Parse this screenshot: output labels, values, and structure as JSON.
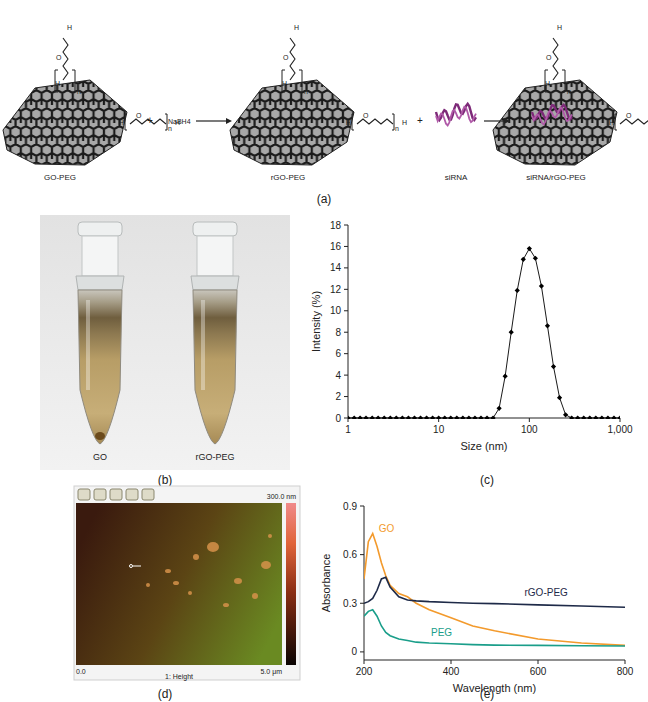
{
  "panel_labels": [
    "(a)",
    "(b)",
    "(c)",
    "(d)",
    "(e)"
  ],
  "schematic": {
    "labels": [
      "GO-PEG",
      "rGO-PEG",
      "siRNA",
      "siRNA/rGO-PEG"
    ],
    "reagent": "NaBH4",
    "plus": "+",
    "atoms": {
      "h": "H",
      "o": "O",
      "n": "n"
    }
  },
  "photo": {
    "labels": [
      "GO",
      "rGO-PEG"
    ]
  },
  "afm": {
    "scale_label": "300.0 nm",
    "x_start": "0.0",
    "x_end": "5.0 μm",
    "channel": "1: Height"
  },
  "chart_data": [
    {
      "type": "line",
      "x_label": "Size (nm)",
      "y_label": "Intensity (%)",
      "log": "x",
      "marker": "diamond",
      "color": "#000000",
      "grid": false,
      "x": [
        1,
        1.17,
        1.36,
        1.58,
        1.85,
        2.15,
        2.51,
        2.93,
        3.41,
        3.98,
        4.64,
        5.41,
        6.31,
        7.36,
        8.58,
        10,
        11.66,
        13.59,
        15.85,
        18.48,
        21.54,
        25.12,
        29.29,
        34.15,
        39.81,
        46.42,
        54.12,
        63.1,
        73.56,
        85.77,
        100,
        116.59,
        135.94,
        158.49,
        184.78,
        215.44,
        251.19,
        292.87,
        341.46,
        398.11,
        464.16,
        541.17,
        630.96,
        735.64,
        857.7,
        1000
      ],
      "values": [
        0,
        0,
        0,
        0,
        0,
        0,
        0,
        0,
        0,
        0,
        0,
        0,
        0,
        0,
        0,
        0,
        0,
        0,
        0,
        0,
        0,
        0,
        0,
        0,
        0,
        0.9,
        3.9,
        8.0,
        11.9,
        14.8,
        15.8,
        14.9,
        12.3,
        8.6,
        4.8,
        1.9,
        0.3,
        0,
        0,
        0,
        0,
        0,
        0,
        0,
        0,
        0
      ],
      "xlim": [
        1,
        1000
      ],
      "xticks": [
        1,
        10,
        100,
        {
          "value": 1000,
          "label": "1,000"
        }
      ],
      "ylim": [
        0,
        18
      ],
      "yticks": [
        0,
        2,
        4,
        6,
        8,
        10,
        12,
        14,
        16,
        18
      ]
    },
    {
      "type": "line",
      "x_label": "Wavelength (nm)",
      "y_label": "Absorbance",
      "grid": false,
      "x": [
        200,
        210,
        220,
        230,
        240,
        250,
        260,
        280,
        300,
        320,
        350,
        400,
        450,
        500,
        600,
        700,
        800
      ],
      "series": [
        {
          "name": "GO",
          "color": "#f39a2c",
          "values": [
            0.45,
            0.68,
            0.73,
            0.65,
            0.55,
            0.47,
            0.41,
            0.36,
            0.34,
            0.3,
            0.26,
            0.21,
            0.16,
            0.13,
            0.08,
            0.055,
            0.04
          ]
        },
        {
          "name": "rGO-PEG",
          "color": "#1e2a48",
          "values": [
            0.3,
            0.31,
            0.33,
            0.38,
            0.45,
            0.46,
            0.4,
            0.34,
            0.32,
            0.315,
            0.31,
            0.305,
            0.3,
            0.298,
            0.29,
            0.283,
            0.275
          ]
        },
        {
          "name": "PEG",
          "color": "#1a9e8a",
          "values": [
            0.22,
            0.25,
            0.26,
            0.22,
            0.16,
            0.12,
            0.1,
            0.08,
            0.07,
            0.06,
            0.055,
            0.05,
            0.045,
            0.042,
            0.04,
            0.038,
            0.036
          ]
        }
      ],
      "xlim": [
        200,
        800
      ],
      "xticks": [
        200,
        400,
        600,
        800
      ],
      "ylim": [
        -0.05,
        0.9
      ],
      "yticks": [
        0,
        0.3,
        0.6,
        0.9
      ]
    }
  ]
}
